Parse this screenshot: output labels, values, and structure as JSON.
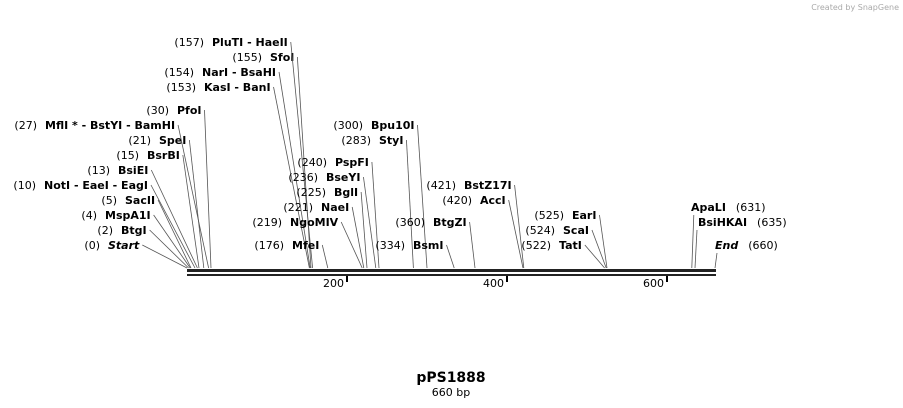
{
  "credit": "Created by SnapGene",
  "title": "pPS1888",
  "subtitle": "660 bp",
  "ruler": {
    "ticks": [
      200,
      400,
      600
    ]
  },
  "sites": [
    {
      "position": {
        "value": 0,
        "label": "(0)"
      },
      "name": "Start"
    },
    {
      "position": {
        "value": 2,
        "label": "(2)"
      },
      "name": "BtgI"
    },
    {
      "position": {
        "value": 4,
        "label": "(4)"
      },
      "name": "MspA1I"
    },
    {
      "position": {
        "value": 5,
        "label": "(5)"
      },
      "name": "SacII"
    },
    {
      "position": {
        "value": 10,
        "label": "(10)"
      },
      "name": "NotI - EaeI - EagI"
    },
    {
      "position": {
        "value": 13,
        "label": "(13)"
      },
      "name": "BsiEI"
    },
    {
      "position": {
        "value": 15,
        "label": "(15)"
      },
      "name": "BsrBI"
    },
    {
      "position": {
        "value": 21,
        "label": "(21)"
      },
      "name": "SpeI"
    },
    {
      "position": {
        "value": 27,
        "label": "(27)"
      },
      "name": "MflI * - BstYI - BamHI"
    },
    {
      "position": {
        "value": 30,
        "label": "(30)"
      },
      "name": "PfoI"
    },
    {
      "position": {
        "value": 153,
        "label": "(153)"
      },
      "name": "KasI - BanI"
    },
    {
      "position": {
        "value": 154,
        "label": "(154)"
      },
      "name": "NarI - BsaHI"
    },
    {
      "position": {
        "value": 155,
        "label": "(155)"
      },
      "name": "SfoI"
    },
    {
      "position": {
        "value": 157,
        "label": "(157)"
      },
      "name": "PluTI - HaeII"
    },
    {
      "position": {
        "value": 176,
        "label": "(176)"
      },
      "name": "MfeI"
    },
    {
      "position": {
        "value": 219,
        "label": "(219)"
      },
      "name": "NgoMIV"
    },
    {
      "position": {
        "value": 221,
        "label": "(221)"
      },
      "name": "NaeI"
    },
    {
      "position": {
        "value": 225,
        "label": "(225)"
      },
      "name": "BglI"
    },
    {
      "position": {
        "value": 236,
        "label": "(236)"
      },
      "name": "BseYI"
    },
    {
      "position": {
        "value": 240,
        "label": "(240)"
      },
      "name": "PspFI"
    },
    {
      "position": {
        "value": 283,
        "label": "(283)"
      },
      "name": "StyI"
    },
    {
      "position": {
        "value": 300,
        "label": "(300)"
      },
      "name": "Bpu10I"
    },
    {
      "position": {
        "value": 334,
        "label": "(334)"
      },
      "name": "BsmI"
    },
    {
      "position": {
        "value": 360,
        "label": "(360)"
      },
      "name": "BtgZI"
    },
    {
      "position": {
        "value": 420,
        "label": "(420)"
      },
      "name": "AccI"
    },
    {
      "position": {
        "value": 421,
        "label": "(421)"
      },
      "name": "BstZ17I"
    },
    {
      "position": {
        "value": 522,
        "label": "(522)"
      },
      "name": "TatI"
    },
    {
      "position": {
        "value": 524,
        "label": "(524)"
      },
      "name": "ScaI"
    },
    {
      "position": {
        "value": 525,
        "label": "(525)"
      },
      "name": "EarI"
    },
    {
      "position": {
        "value": 631,
        "label": "(631)"
      },
      "name": "ApaLI"
    },
    {
      "position": {
        "value": 635,
        "label": "(635)"
      },
      "name": "BsiHKAI"
    },
    {
      "position": {
        "value": 660,
        "label": "(660)"
      },
      "name": "End"
    }
  ]
}
